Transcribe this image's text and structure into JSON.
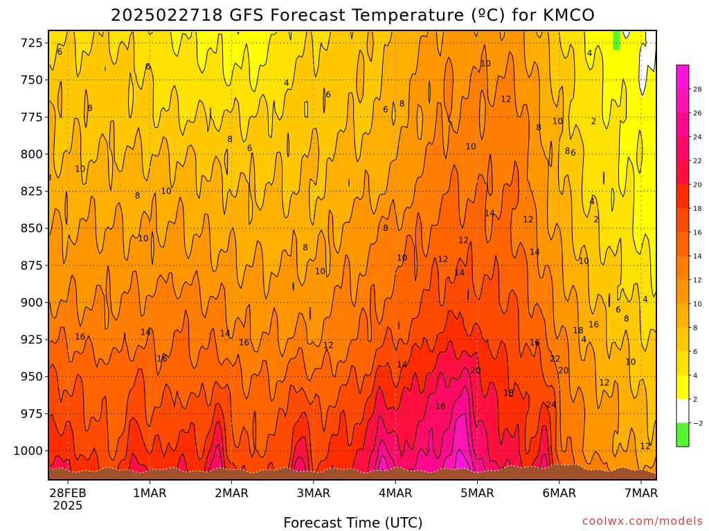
{
  "chart_data": {
    "type": "heatmap",
    "title": "2025022718 GFS Forecast Temperature (ºC) for KMCO",
    "xlabel": "Forecast Time (UTC)",
    "ylabel": "",
    "credit": "coolwx.com/models",
    "x_ticks": [
      {
        "day": 0,
        "label": "28FEB",
        "sublabel": "2025"
      },
      {
        "day": 1,
        "label": "1MAR"
      },
      {
        "day": 2,
        "label": "2MAR"
      },
      {
        "day": 3,
        "label": "3MAR"
      },
      {
        "day": 4,
        "label": "4MAR"
      },
      {
        "day": 5,
        "label": "5MAR"
      },
      {
        "day": 6,
        "label": "6MAR"
      },
      {
        "day": 7,
        "label": "7MAR"
      }
    ],
    "xlim_days": [
      -0.25,
      7.1
    ],
    "y_ticks": [
      725,
      750,
      775,
      800,
      825,
      850,
      875,
      900,
      925,
      950,
      975,
      1000
    ],
    "ylim_hpa": [
      718,
      1020
    ],
    "surface_pressure_hpa": 1013,
    "colorbar": {
      "ticks": [
        28,
        26,
        24,
        22,
        20,
        18,
        16,
        14,
        12,
        10,
        8,
        6,
        4,
        2,
        -2
      ],
      "bins": [
        {
          "from": -4,
          "to": -2,
          "color": "#55f533"
        },
        {
          "from": -2,
          "to": 2,
          "color": "#ffffff"
        },
        {
          "from": 2,
          "to": 4,
          "color": "#ffff00"
        },
        {
          "from": 4,
          "to": 6,
          "color": "#ffe100"
        },
        {
          "from": 6,
          "to": 8,
          "color": "#ffc800"
        },
        {
          "from": 8,
          "to": 10,
          "color": "#ffaf00"
        },
        {
          "from": 10,
          "to": 12,
          "color": "#ff9600"
        },
        {
          "from": 12,
          "to": 14,
          "color": "#ff7d00"
        },
        {
          "from": 14,
          "to": 16,
          "color": "#ff6400"
        },
        {
          "from": 16,
          "to": 18,
          "color": "#ff4b00"
        },
        {
          "from": 18,
          "to": 20,
          "color": "#ff2d00"
        },
        {
          "from": 20,
          "to": 22,
          "color": "#ff1040"
        },
        {
          "from": 22,
          "to": 24,
          "color": "#ff0a64"
        },
        {
          "from": 24,
          "to": 26,
          "color": "#ff0a8c"
        },
        {
          "from": 26,
          "to": 28,
          "color": "#ff14b4"
        },
        {
          "from": 28,
          "to": 30,
          "color": "#ff14dc"
        }
      ]
    },
    "ground_color": "#a0522d",
    "contour_interval": 2,
    "cold_pocket": {
      "day": 6.7,
      "pressure_hpa": 728,
      "color": "#55f533"
    },
    "series": [
      {
        "pressure_hpa": 725,
        "temps": [
          6,
          6,
          4,
          3,
          6,
          8,
          11,
          11,
          4,
          2
        ]
      },
      {
        "pressure_hpa": 750,
        "temps": [
          7,
          7,
          5,
          4,
          7,
          8,
          12,
          12,
          5,
          2
        ]
      },
      {
        "pressure_hpa": 775,
        "temps": [
          8,
          7,
          6,
          6,
          7,
          8,
          12,
          13,
          5,
          3
        ]
      },
      {
        "pressure_hpa": 800,
        "temps": [
          8,
          8,
          8,
          7,
          8,
          9,
          13,
          13,
          6,
          3
        ]
      },
      {
        "pressure_hpa": 825,
        "temps": [
          9,
          9,
          9,
          8,
          8,
          10,
          14,
          14,
          6,
          3
        ]
      },
      {
        "pressure_hpa": 850,
        "temps": [
          10,
          10,
          10,
          9,
          9,
          12,
          15,
          14,
          7,
          3
        ]
      },
      {
        "pressure_hpa": 875,
        "temps": [
          11,
          11,
          11,
          10,
          10,
          13,
          16,
          15,
          8,
          4
        ]
      },
      {
        "pressure_hpa": 900,
        "temps": [
          12,
          12,
          13,
          11,
          11,
          14,
          17,
          16,
          9,
          5
        ]
      },
      {
        "pressure_hpa": 925,
        "temps": [
          14,
          13,
          14,
          12,
          12,
          15,
          19,
          17,
          10,
          6
        ]
      },
      {
        "pressure_hpa": 950,
        "temps": [
          16,
          15,
          15,
          14,
          14,
          17,
          22,
          18,
          11,
          7
        ]
      },
      {
        "pressure_hpa": 975,
        "temps": [
          18,
          15,
          17,
          15,
          16,
          19,
          24,
          19,
          12,
          8
        ]
      },
      {
        "pressure_hpa": 1000,
        "temps": [
          20,
          16,
          19,
          16,
          17,
          21,
          25,
          20,
          12,
          9
        ]
      }
    ],
    "diurnal": {
      "peaks_days": [
        0.83,
        1.83,
        2.83,
        3.83,
        4.83,
        5.83
      ],
      "peak_amplitude": [
        4,
        6,
        6,
        6,
        6,
        6,
        4
      ],
      "surface_peak_max": 28
    },
    "contour_labels": [
      {
        "day": -0.1,
        "p": 731,
        "text": "6"
      },
      {
        "day": 0.27,
        "p": 769,
        "text": "8"
      },
      {
        "day": 0.98,
        "p": 741,
        "text": "6"
      },
      {
        "day": 1.98,
        "p": 790,
        "text": "8"
      },
      {
        "day": 2.22,
        "p": 796,
        "text": "6"
      },
      {
        "day": 2.67,
        "p": 752,
        "text": "4"
      },
      {
        "day": 3.18,
        "p": 760,
        "text": "6"
      },
      {
        "day": 3.88,
        "p": 770,
        "text": "6"
      },
      {
        "day": 4.08,
        "p": 766,
        "text": "8"
      },
      {
        "day": 4.92,
        "p": 795,
        "text": "10"
      },
      {
        "day": 5.1,
        "p": 739,
        "text": "10"
      },
      {
        "day": 5.35,
        "p": 763,
        "text": "12"
      },
      {
        "day": 5.75,
        "p": 782,
        "text": "8"
      },
      {
        "day": 5.98,
        "p": 778,
        "text": "10"
      },
      {
        "day": 6.1,
        "p": 798,
        "text": "8"
      },
      {
        "day": 6.17,
        "p": 799,
        "text": "6"
      },
      {
        "day": 6.37,
        "p": 732,
        "text": "4"
      },
      {
        "day": 6.42,
        "p": 778,
        "text": "2"
      },
      {
        "day": -0.23,
        "p": 816,
        "text": "8"
      },
      {
        "day": 0.15,
        "p": 810,
        "text": "10"
      },
      {
        "day": 0.85,
        "p": 828,
        "text": "8"
      },
      {
        "day": 1.2,
        "p": 825,
        "text": "10"
      },
      {
        "day": 0.92,
        "p": 857,
        "text": "10"
      },
      {
        "day": 2.9,
        "p": 863,
        "text": "8"
      },
      {
        "day": 3.08,
        "p": 879,
        "text": "10"
      },
      {
        "day": 3.88,
        "p": 850,
        "text": "8"
      },
      {
        "day": 4.08,
        "p": 870,
        "text": "10"
      },
      {
        "day": 4.58,
        "p": 871,
        "text": "12"
      },
      {
        "day": 4.83,
        "p": 858,
        "text": "12"
      },
      {
        "day": 4.78,
        "p": 880,
        "text": "14"
      },
      {
        "day": 5.15,
        "p": 840,
        "text": "14"
      },
      {
        "day": 5.62,
        "p": 844,
        "text": "12"
      },
      {
        "day": 5.7,
        "p": 866,
        "text": "14"
      },
      {
        "day": 6.3,
        "p": 872,
        "text": "10"
      },
      {
        "day": 6.45,
        "p": 844,
        "text": "2"
      },
      {
        "day": 6.4,
        "p": 832,
        "text": "4"
      },
      {
        "day": 0.15,
        "p": 923,
        "text": "16"
      },
      {
        "day": 0.95,
        "p": 920,
        "text": "14"
      },
      {
        "day": 1.15,
        "p": 938,
        "text": "16"
      },
      {
        "day": 1.92,
        "p": 921,
        "text": "14"
      },
      {
        "day": 2.15,
        "p": 927,
        "text": "16"
      },
      {
        "day": 3.18,
        "p": 929,
        "text": "12"
      },
      {
        "day": 4.08,
        "p": 942,
        "text": "14"
      },
      {
        "day": 4.55,
        "p": 970,
        "text": "16"
      },
      {
        "day": 4.98,
        "p": 946,
        "text": "20"
      },
      {
        "day": 5.38,
        "p": 961,
        "text": "18"
      },
      {
        "day": 5.7,
        "p": 927,
        "text": "16"
      },
      {
        "day": 5.95,
        "p": 938,
        "text": "22"
      },
      {
        "day": 6.05,
        "p": 946,
        "text": "20"
      },
      {
        "day": 5.9,
        "p": 969,
        "text": "24"
      },
      {
        "day": 6.23,
        "p": 919,
        "text": "18"
      },
      {
        "day": 6.42,
        "p": 915,
        "text": "16"
      },
      {
        "day": 6.3,
        "p": 925,
        "text": "4"
      },
      {
        "day": 6.55,
        "p": 954,
        "text": "12"
      },
      {
        "day": 6.72,
        "p": 905,
        "text": "6"
      },
      {
        "day": 6.82,
        "p": 911,
        "text": "8"
      },
      {
        "day": 6.87,
        "p": 940,
        "text": "10"
      },
      {
        "day": 7.05,
        "p": 898,
        "text": "4"
      },
      {
        "day": 7.05,
        "p": 997,
        "text": "12"
      }
    ]
  }
}
